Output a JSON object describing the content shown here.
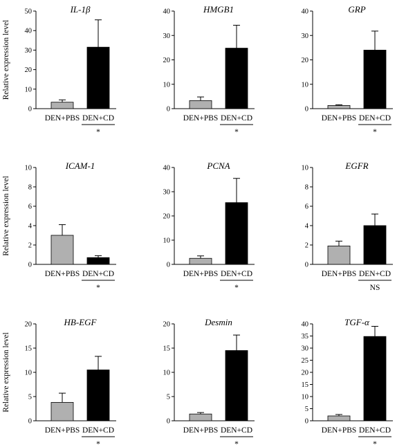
{
  "ylabel": "Relative expression level",
  "chart_data": [
    {
      "type": "bar",
      "title": "IL-1β",
      "categories": [
        "DEN+PBS",
        "DEN+CD"
      ],
      "values": [
        3.3,
        31.5
      ],
      "errors": [
        1.2,
        14.0
      ],
      "colors": [
        "#b0b0b0",
        "#000000"
      ],
      "ylim": [
        0,
        50
      ],
      "yticks": [
        0,
        10,
        20,
        30,
        40,
        50
      ],
      "significance": "*"
    },
    {
      "type": "bar",
      "title": "HMGB1",
      "categories": [
        "DEN+PBS",
        "DEN+CD"
      ],
      "values": [
        3.3,
        24.8
      ],
      "errors": [
        1.5,
        9.4
      ],
      "colors": [
        "#b0b0b0",
        "#000000"
      ],
      "ylim": [
        0,
        40
      ],
      "yticks": [
        0,
        10,
        20,
        30,
        40
      ],
      "significance": "*"
    },
    {
      "type": "bar",
      "title": "GRP",
      "categories": [
        "DEN+PBS",
        "DEN+CD"
      ],
      "values": [
        1.3,
        24.0
      ],
      "errors": [
        0.3,
        7.8
      ],
      "colors": [
        "#b0b0b0",
        "#000000"
      ],
      "ylim": [
        0,
        40
      ],
      "yticks": [
        0,
        10,
        20,
        30,
        40
      ],
      "significance": "*"
    },
    {
      "type": "bar",
      "title": "ICAM-1",
      "categories": [
        "DEN+PBS",
        "DEN+CD"
      ],
      "values": [
        3.0,
        0.7
      ],
      "errors": [
        1.1,
        0.2
      ],
      "colors": [
        "#b0b0b0",
        "#000000"
      ],
      "ylim": [
        0,
        10
      ],
      "yticks": [
        0,
        2,
        4,
        6,
        8,
        10
      ],
      "significance": "*"
    },
    {
      "type": "bar",
      "title": "PCNA",
      "categories": [
        "DEN+PBS",
        "DEN+CD"
      ],
      "values": [
        2.5,
        25.5
      ],
      "errors": [
        1.0,
        10.0
      ],
      "colors": [
        "#b0b0b0",
        "#000000"
      ],
      "ylim": [
        0,
        40
      ],
      "yticks": [
        0,
        10,
        20,
        30,
        40
      ],
      "significance": "*"
    },
    {
      "type": "bar",
      "title": "EGFR",
      "categories": [
        "DEN+PBS",
        "DEN+CD"
      ],
      "values": [
        1.9,
        4.0
      ],
      "errors": [
        0.5,
        1.2
      ],
      "colors": [
        "#b0b0b0",
        "#000000"
      ],
      "ylim": [
        0,
        10
      ],
      "yticks": [
        0,
        2,
        4,
        6,
        8,
        10
      ],
      "significance": "NS"
    },
    {
      "type": "bar",
      "title": "HB-EGF",
      "categories": [
        "DEN+PBS",
        "DEN+CD"
      ],
      "values": [
        3.8,
        10.5
      ],
      "errors": [
        1.9,
        2.8
      ],
      "colors": [
        "#b0b0b0",
        "#000000"
      ],
      "ylim": [
        0,
        20
      ],
      "yticks": [
        0,
        5,
        10,
        15,
        20
      ],
      "significance": "*"
    },
    {
      "type": "bar",
      "title": "Desmin",
      "categories": [
        "DEN+PBS",
        "DEN+CD"
      ],
      "values": [
        1.4,
        14.5
      ],
      "errors": [
        0.3,
        3.2
      ],
      "colors": [
        "#b0b0b0",
        "#000000"
      ],
      "ylim": [
        0,
        20
      ],
      "yticks": [
        0,
        5,
        10,
        15,
        20
      ],
      "significance": "*"
    },
    {
      "type": "bar",
      "title": "TGF-α",
      "categories": [
        "DEN+PBS",
        "DEN+CD"
      ],
      "values": [
        2.0,
        34.8
      ],
      "errors": [
        0.6,
        4.2
      ],
      "colors": [
        "#b0b0b0",
        "#000000"
      ],
      "ylim": [
        0,
        40
      ],
      "yticks": [
        0,
        5,
        10,
        15,
        20,
        25,
        30,
        35,
        40
      ],
      "significance": "*"
    }
  ]
}
